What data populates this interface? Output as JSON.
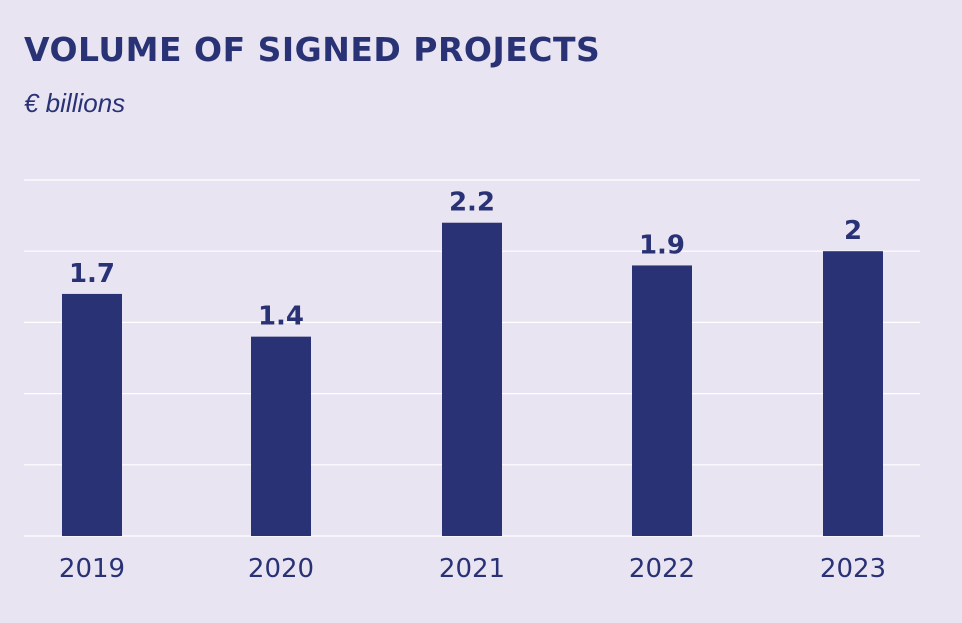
{
  "chart_data": {
    "type": "bar",
    "title": "VOLUME OF SIGNED PROJECTS",
    "subtitle": "€ billions",
    "categories": [
      "2019",
      "2020",
      "2021",
      "2022",
      "2023"
    ],
    "values": [
      1.7,
      1.4,
      2.2,
      1.9,
      2
    ],
    "data_labels": [
      "1.7",
      "1.4",
      "2.2",
      "1.9",
      "2"
    ],
    "xlabel": "",
    "ylabel": "",
    "ylim": [
      0,
      2.5
    ],
    "grid": true,
    "colors": {
      "bar": "#293275",
      "background": "#e9e4f2",
      "grid": "#ffffff",
      "text": "#293275"
    }
  }
}
